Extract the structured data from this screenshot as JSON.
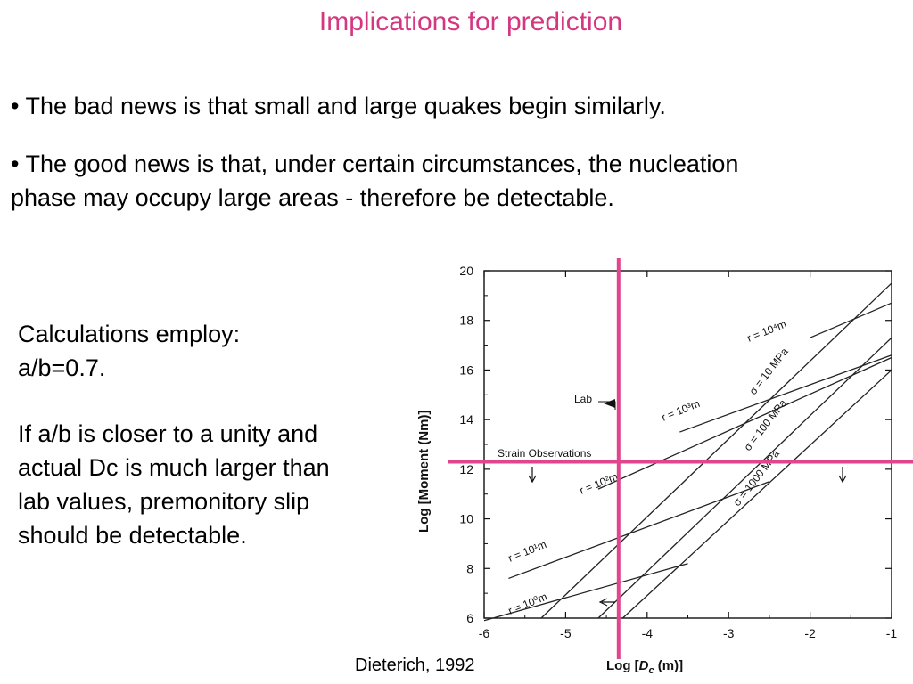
{
  "slide": {
    "title": "Implications for prediction",
    "bullet1": "• The bad news is that small and large quakes begin similarly.",
    "bullet2": "• The good news is that, under certain circumstances, the nucleation phase may occupy large areas - therefore be detectable.",
    "calc_line1": "Calculations employ:",
    "calc_line2": "a/b=0.7.",
    "note": "If a/b is closer to a unity and actual Dc is much larger than lab values, premonitory slip should be detectable.",
    "citation": "Dieterich, 1992",
    "accent_color": "#d4377f",
    "marker_color": "#e0458e"
  },
  "chart_data": {
    "type": "line",
    "xlabel_main": "Log  [",
    "xlabel_var": "D",
    "xlabel_sub": "c",
    "xlabel_unit": " (m)]",
    "ylabel": "Log  [Moment (Nm)]",
    "xlim": [
      -6,
      -1
    ],
    "ylim": [
      6,
      20
    ],
    "xticks": [
      "-6",
      "-5",
      "-4",
      "-3",
      "-2",
      "-1"
    ],
    "yticks": [
      "6",
      "8",
      "10",
      "12",
      "14",
      "16",
      "18",
      "20"
    ],
    "series": [
      {
        "name": "σ = 10 MPa",
        "x": [
          -5.3,
          -1
        ],
        "y": [
          6.0,
          19.5
        ]
      },
      {
        "name": "σ = 100 MPa",
        "x": [
          -4.6,
          -1
        ],
        "y": [
          6.0,
          17.3
        ]
      },
      {
        "name": "σ = 1000 MPa",
        "x": [
          -4.3,
          -1
        ],
        "y": [
          6.0,
          16.0
        ]
      },
      {
        "name": "r = 10^4 m",
        "x": [
          -2.0,
          -1
        ],
        "y": [
          17.3,
          18.7
        ]
      },
      {
        "name": "r = 10^3 m",
        "x": [
          -3.6,
          -1
        ],
        "y": [
          13.5,
          16.6
        ]
      },
      {
        "name": "r = 10^2 m",
        "x": [
          -4.6,
          -1
        ],
        "y": [
          11.2,
          16.5
        ]
      },
      {
        "name": "r = 10^1 m",
        "x": [
          -5.7,
          -2.5
        ],
        "y": [
          7.6,
          11.5
        ]
      },
      {
        "name": "r = 10^0 m",
        "x": [
          -6.0,
          -3.5
        ],
        "y": [
          5.9,
          8.2
        ]
      }
    ],
    "labels": {
      "r4": "r = 10⁴m",
      "r3": "r = 10³m",
      "r2": "r = 10²m",
      "r1": "r = 10¹m",
      "r0": "r = 10⁰m",
      "s10": "σ = 10 MPa",
      "s100": "σ = 100 MPa",
      "s1000": "σ = 1000 MPa"
    },
    "annotations": {
      "lab": "Lab",
      "strain": "Strain Observations"
    },
    "markers": {
      "vertical_dc": -4.35,
      "horizontal_moment": 12.3
    }
  }
}
